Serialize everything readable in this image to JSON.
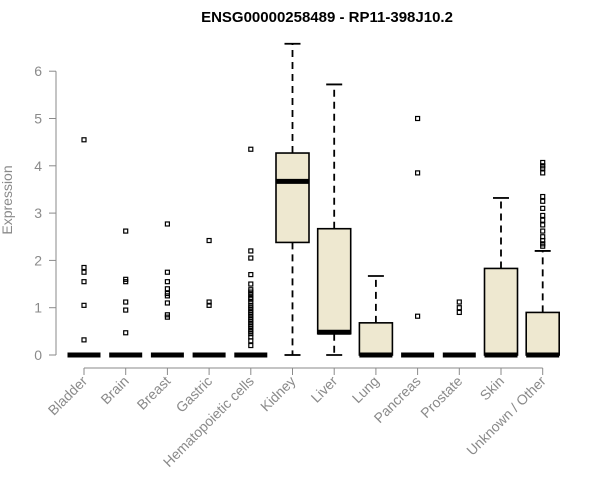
{
  "chart_data": {
    "type": "box",
    "title": "ENSG00000258489 - RP11-398J10.2",
    "xlabel": "",
    "ylabel": "Expression",
    "ylim": [
      0,
      6.6
    ],
    "yticks": [
      "0",
      "1",
      "2",
      "3",
      "4",
      "5",
      "6"
    ],
    "box_color": "#EEE8D0",
    "categories": [
      "Bladder",
      "Brain",
      "Breast",
      "Gastric",
      "Hematopoietic cells",
      "Kidney",
      "Liver",
      "Lung",
      "Pancreas",
      "Prostate",
      "Skin",
      "Unknown / Other"
    ],
    "boxes": [
      {
        "min": 0,
        "q1": 0,
        "median": 0,
        "q3": 0,
        "max": 0,
        "outliers": [
          4.55,
          1.85,
          1.75,
          1.55,
          1.05,
          0.32
        ]
      },
      {
        "min": 0,
        "q1": 0,
        "median": 0,
        "q3": 0,
        "max": 0,
        "outliers": [
          2.62,
          1.6,
          1.55,
          1.12,
          0.95,
          0.47
        ]
      },
      {
        "min": 0,
        "q1": 0,
        "median": 0,
        "q3": 0,
        "max": 0,
        "outliers": [
          2.77,
          1.75,
          1.55,
          1.4,
          1.3,
          1.25,
          1.1,
          0.85,
          0.8
        ]
      },
      {
        "min": 0,
        "q1": 0,
        "median": 0,
        "q3": 0,
        "max": 0,
        "outliers": [
          2.42,
          1.12,
          1.05
        ]
      },
      {
        "min": 0,
        "q1": 0,
        "median": 0,
        "q3": 0,
        "max": 0,
        "outliers": [
          4.35,
          2.2,
          2.05,
          1.7,
          1.5,
          1.38,
          1.33,
          1.28,
          1.22,
          1.18,
          1.12,
          1.05,
          1.0,
          0.95,
          0.9,
          0.85,
          0.8,
          0.75,
          0.7,
          0.65,
          0.6,
          0.55,
          0.5,
          0.45,
          0.38,
          0.3,
          0.2
        ]
      },
      {
        "min": 0,
        "q1": 2.38,
        "median": 3.67,
        "q3": 4.27,
        "max": 6.58,
        "outliers": []
      },
      {
        "min": 0,
        "q1": 0.45,
        "median": 0.48,
        "q3": 2.67,
        "max": 5.72,
        "outliers": []
      },
      {
        "min": 0,
        "q1": 0,
        "median": 0,
        "q3": 0.68,
        "max": 1.67,
        "outliers": []
      },
      {
        "min": 0,
        "q1": 0,
        "median": 0,
        "q3": 0,
        "max": 0,
        "outliers": [
          5.0,
          3.85,
          0.82
        ]
      },
      {
        "min": 0,
        "q1": 0,
        "median": 0,
        "q3": 0,
        "max": 0,
        "outliers": [
          1.12,
          1.0,
          0.9
        ]
      },
      {
        "min": 0,
        "q1": 0,
        "median": 0,
        "q3": 1.83,
        "max": 3.32,
        "outliers": []
      },
      {
        "min": 0,
        "q1": 0,
        "median": 0,
        "q3": 0.9,
        "max": 2.2,
        "outliers": [
          4.07,
          4.0,
          3.95,
          3.85,
          3.35,
          3.25,
          3.1,
          2.95,
          2.85,
          2.75,
          2.62,
          2.5,
          2.42,
          2.35,
          2.3
        ]
      }
    ]
  }
}
